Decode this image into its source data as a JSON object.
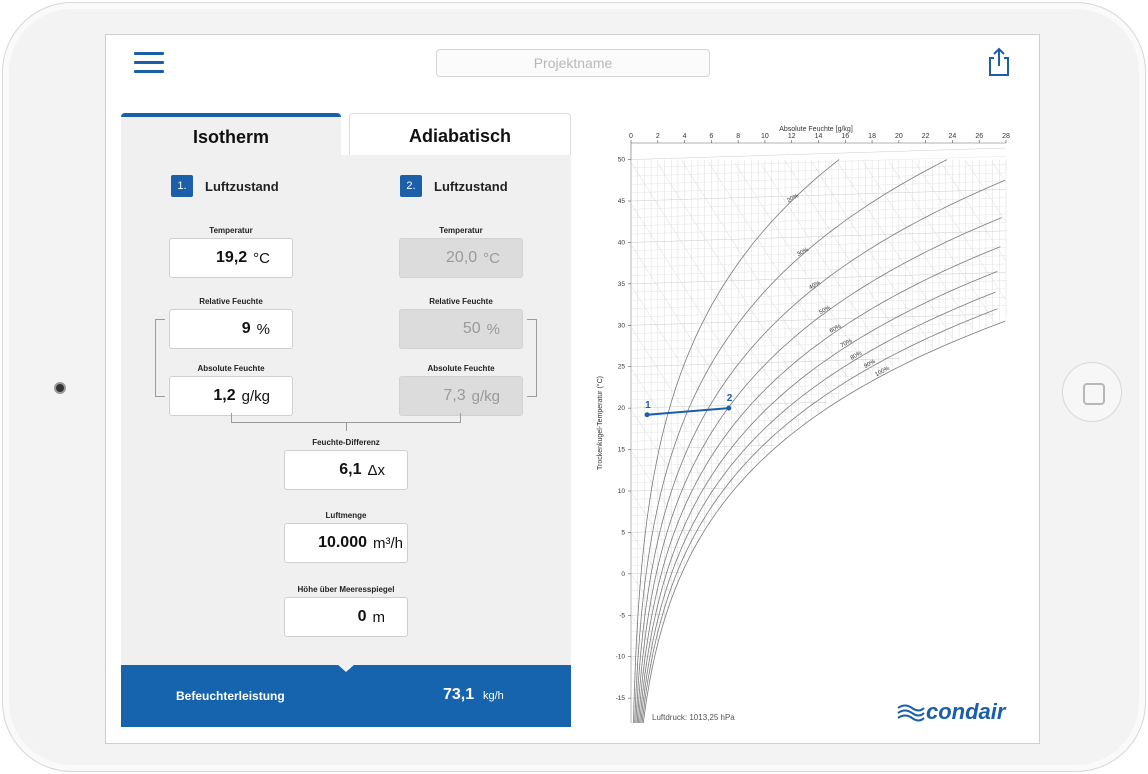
{
  "header": {
    "project_placeholder": "Projektname"
  },
  "tabs": [
    {
      "label": "Isotherm",
      "active": true
    },
    {
      "label": "Adiabatisch",
      "active": false
    }
  ],
  "state1": {
    "num": "1.",
    "title": "Luftzustand",
    "temperature": {
      "label": "Temperatur",
      "value": "19,2",
      "unit": "°C"
    },
    "rel_humidity": {
      "label": "Relative Feuchte",
      "value": "9",
      "unit": "%"
    },
    "abs_humidity": {
      "label": "Absolute Feuchte",
      "value": "1,2",
      "unit": "g/kg"
    }
  },
  "state2": {
    "num": "2.",
    "title": "Luftzustand",
    "temperature": {
      "label": "Temperatur",
      "value": "20,0",
      "unit": "°C"
    },
    "rel_humidity": {
      "label": "Relative Feuchte",
      "value": "50",
      "unit": "%"
    },
    "abs_humidity": {
      "label": "Absolute Feuchte",
      "value": "7,3",
      "unit": "g/kg"
    }
  },
  "humidity_diff": {
    "label": "Feuchte-Differenz",
    "value": "6,1",
    "unit": "Δx"
  },
  "airflow": {
    "label": "Luftmenge",
    "value": "10.000",
    "unit": "m³/h"
  },
  "altitude": {
    "label": "Höhe über Meeresspiegel",
    "value": "0",
    "unit": "m"
  },
  "result": {
    "label": "Befeuchterleistung",
    "value": "73,1",
    "unit": "kg/h"
  },
  "chart_data": {
    "type": "line",
    "title": "Absolute Feuchte [g/kg]",
    "ylabel": "Trockenkugel-Temperatur (°C)",
    "x_ticks": [
      "0",
      "2",
      "4",
      "6",
      "8",
      "10",
      "12",
      "14",
      "16",
      "18",
      "20",
      "22",
      "24",
      "26",
      "28"
    ],
    "y_ticks": [
      "50",
      "45",
      "40",
      "35",
      "30",
      "25",
      "20",
      "15",
      "10",
      "5",
      "0",
      "-5",
      "-10",
      "-15"
    ],
    "xlim": [
      0,
      28
    ],
    "ylim": [
      -18,
      52
    ],
    "rh_curves": [
      {
        "label": "20%",
        "rh": 20
      },
      {
        "label": "30%",
        "rh": 30
      },
      {
        "label": "40%",
        "rh": 40
      },
      {
        "label": "50%",
        "rh": 50
      },
      {
        "label": "60%",
        "rh": 60
      },
      {
        "label": "70%",
        "rh": 70
      },
      {
        "label": "80%",
        "rh": 80
      },
      {
        "label": "90%",
        "rh": 90
      },
      {
        "label": "100%",
        "rh": 100
      }
    ],
    "process": {
      "points": [
        {
          "label": "1",
          "x": 1.2,
          "y": 19.2
        },
        {
          "label": "2",
          "x": 7.3,
          "y": 20.0
        }
      ],
      "color": "#1a5fa8"
    },
    "grid": true
  },
  "pressure_text": "Luftdruck: 1013,25 hPa",
  "logo_text": "condair",
  "colors": {
    "accent": "#1a5fa8",
    "footer": "#1664ae"
  }
}
